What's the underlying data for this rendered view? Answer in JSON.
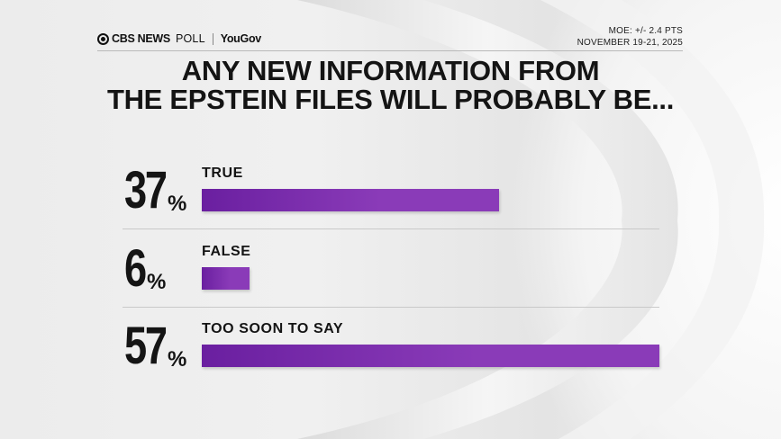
{
  "header": {
    "brand_cbs": "CBS NEWS",
    "brand_poll": "POLL",
    "brand_partner": "YouGov",
    "moe": "MOE: +/- 2.4 PTS",
    "dates": "NOVEMBER 19-21, 2025"
  },
  "chart_data": {
    "type": "bar",
    "orientation": "horizontal",
    "title_lines": [
      "ANY NEW INFORMATION FROM",
      "THE EPSTEIN FILES WILL PROBABLY BE..."
    ],
    "categories": [
      "TRUE",
      "FALSE",
      "TOO SOON TO SAY"
    ],
    "values": [
      37,
      6,
      57
    ],
    "unit": "%",
    "xlim": [
      0,
      57
    ],
    "grid": false,
    "legend": "none",
    "colors": {
      "bar": "#8a3bb8",
      "bar_dark": "#6a1fa0"
    }
  }
}
